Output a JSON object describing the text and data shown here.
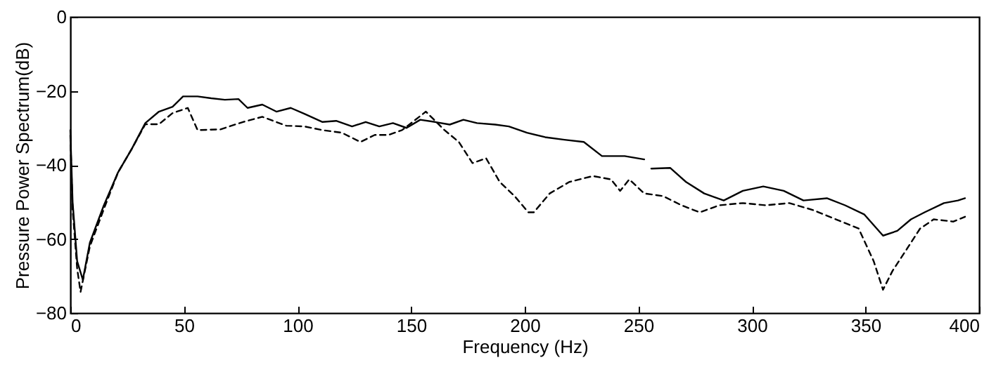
{
  "chart_data": {
    "type": "line",
    "xlabel": "Frequency (Hz)",
    "ylabel": "Pressure Power Spectrum(dB)",
    "xlim": [
      0,
      400
    ],
    "ylim": [
      -80,
      0
    ],
    "xticks": [
      0,
      50,
      100,
      150,
      200,
      250,
      300,
      350,
      400
    ],
    "yticks": [
      0,
      -20,
      -40,
      -60,
      -80
    ],
    "grid": false,
    "series": [
      {
        "color": "#000000",
        "line_style": "solid",
        "x": [
          0,
          1,
          3,
          5.5,
          8.6,
          14.7,
          21,
          27,
          33,
          39,
          45,
          49.6,
          56,
          62,
          68,
          74,
          78,
          84.5,
          90.7,
          97,
          103,
          111,
          117,
          124,
          130,
          136,
          142,
          148,
          154,
          160.5,
          167,
          173,
          179,
          187,
          193,
          201,
          209,
          217.5,
          226,
          234,
          244,
          252.6,
          254,
          255.7,
          264,
          271,
          279,
          287.6,
          296,
          305,
          314,
          322.7,
          333,
          341,
          349.5,
          357.7,
          364,
          370,
          376,
          384.5,
          390.7,
          393.8
        ],
        "values": [
          -30.6,
          -50,
          -66,
          -71,
          -61,
          -51,
          -42,
          -35.7,
          -28.7,
          -25.6,
          -24.3,
          -21.5,
          -21.5,
          -22,
          -22.4,
          -22.2,
          -24.6,
          -23.7,
          -25.6,
          -24.6,
          -26.2,
          -28.4,
          -28.1,
          -29.6,
          -28.4,
          -29.6,
          -28.7,
          -30,
          -27.8,
          -28.4,
          -29.1,
          -27.8,
          -28.7,
          -29.1,
          -29.6,
          -31.3,
          -32.5,
          -33.2,
          -33.8,
          -37.6,
          -37.6,
          -38.5,
          null,
          -41,
          -40.8,
          -44.6,
          -47.7,
          -49.6,
          -47,
          -45.8,
          -47,
          -49.6,
          -49,
          -50.9,
          -53.4,
          -59.1,
          -57.8,
          -54.7,
          -52.8,
          -50.3,
          -49.6,
          -49
        ]
      },
      {
        "color": "#000000",
        "line_style": "dashed",
        "x": [
          0,
          1,
          3,
          4.5,
          8.6,
          14.7,
          21,
          27,
          33,
          39,
          45,
          51.7,
          56,
          66,
          76,
          84.5,
          95,
          103,
          111,
          119.5,
          127.7,
          134,
          140,
          146,
          156.5,
          164.7,
          171,
          177,
          183,
          189,
          195.5,
          201.6,
          204,
          211,
          219.6,
          230,
          238,
          242,
          246,
          252.6,
          260.8,
          269,
          277,
          285.6,
          296,
          306,
          316.5,
          327,
          337,
          347,
          353.6,
          357.7,
          361.9,
          368,
          374,
          380,
          388.7,
          393.8
        ],
        "values": [
          -32,
          -52,
          -68,
          -74.3,
          -62,
          -52,
          -42,
          -35.7,
          -29,
          -29,
          -26,
          -24.6,
          -30.6,
          -30.4,
          -28.4,
          -27,
          -29.4,
          -29.6,
          -30.6,
          -31.3,
          -33.8,
          -31.9,
          -31.9,
          -30.6,
          -25.6,
          -30.6,
          -33.8,
          -39.5,
          -38.2,
          -44.6,
          -48.4,
          -52.8,
          -52.8,
          -47.7,
          -44.6,
          -43,
          -43.9,
          -47,
          -43.9,
          -47.7,
          -48.4,
          -50.9,
          -52.8,
          -50.9,
          -50.3,
          -50.9,
          -50.3,
          -52.2,
          -54.7,
          -57.2,
          -66,
          -73.7,
          -68.6,
          -62.9,
          -57.2,
          -54.7,
          -55.3,
          -54
        ]
      }
    ]
  }
}
